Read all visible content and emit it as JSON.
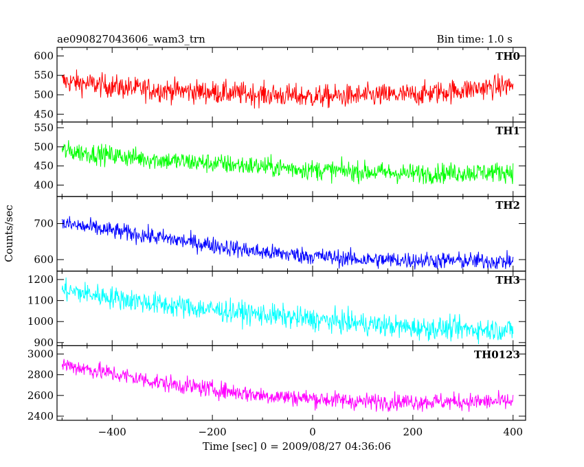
{
  "chart_data": {
    "type": "line",
    "title_left": "ae090827043606_wam3_trn",
    "title_right": "Bin time: 1.0 s",
    "xlabel": "Time [sec] 0 = 2009/08/27 04:36:06",
    "ylabel": "Counts/sec",
    "xlim": [
      -510,
      425
    ],
    "x_ticks": [
      -400,
      -200,
      0,
      200,
      400
    ],
    "x_tick_labels": [
      "−400",
      "−200",
      "0",
      "200",
      "400"
    ],
    "x_range": [
      -500,
      400
    ],
    "bin_time": 1.0,
    "panels": [
      {
        "name": "TH0",
        "color": "#ff0000",
        "ylim": [
          430,
          622
        ],
        "y_ticks": [
          450,
          500,
          550,
          600
        ],
        "trend": [
          [
            -500,
            535
          ],
          [
            -350,
            515
          ],
          [
            0,
            495
          ],
          [
            200,
            500
          ],
          [
            400,
            525
          ]
        ],
        "noise": 25
      },
      {
        "name": "TH1",
        "color": "#00ff00",
        "ylim": [
          370,
          565
        ],
        "y_ticks": [
          400,
          450,
          500,
          550
        ],
        "trend": [
          [
            -500,
            490
          ],
          [
            -300,
            465
          ],
          [
            0,
            440
          ],
          [
            200,
            430
          ],
          [
            400,
            435
          ]
        ],
        "noise": 22
      },
      {
        "name": "TH2",
        "color": "#0000ff",
        "ylim": [
          568,
          775
        ],
        "y_ticks": [
          600,
          700
        ],
        "trend": [
          [
            -500,
            700
          ],
          [
            -300,
            660
          ],
          [
            -100,
            620
          ],
          [
            100,
            600
          ],
          [
            400,
            595
          ]
        ],
        "noise": 20
      },
      {
        "name": "TH3",
        "color": "#00ffff",
        "ylim": [
          885,
          1240
        ],
        "y_ticks": [
          900,
          1000,
          1100,
          1200
        ],
        "trend": [
          [
            -500,
            1150
          ],
          [
            -300,
            1080
          ],
          [
            0,
            1010
          ],
          [
            200,
            970
          ],
          [
            400,
            960
          ]
        ],
        "noise": 45
      },
      {
        "name": "TH0123",
        "color": "#ff00ff",
        "ylim": [
          2360,
          3080
        ],
        "y_ticks": [
          2400,
          2600,
          2800,
          3000
        ],
        "trend": [
          [
            -500,
            2900
          ],
          [
            -300,
            2720
          ],
          [
            -100,
            2600
          ],
          [
            100,
            2540
          ],
          [
            400,
            2540
          ]
        ],
        "noise": 70
      }
    ]
  }
}
